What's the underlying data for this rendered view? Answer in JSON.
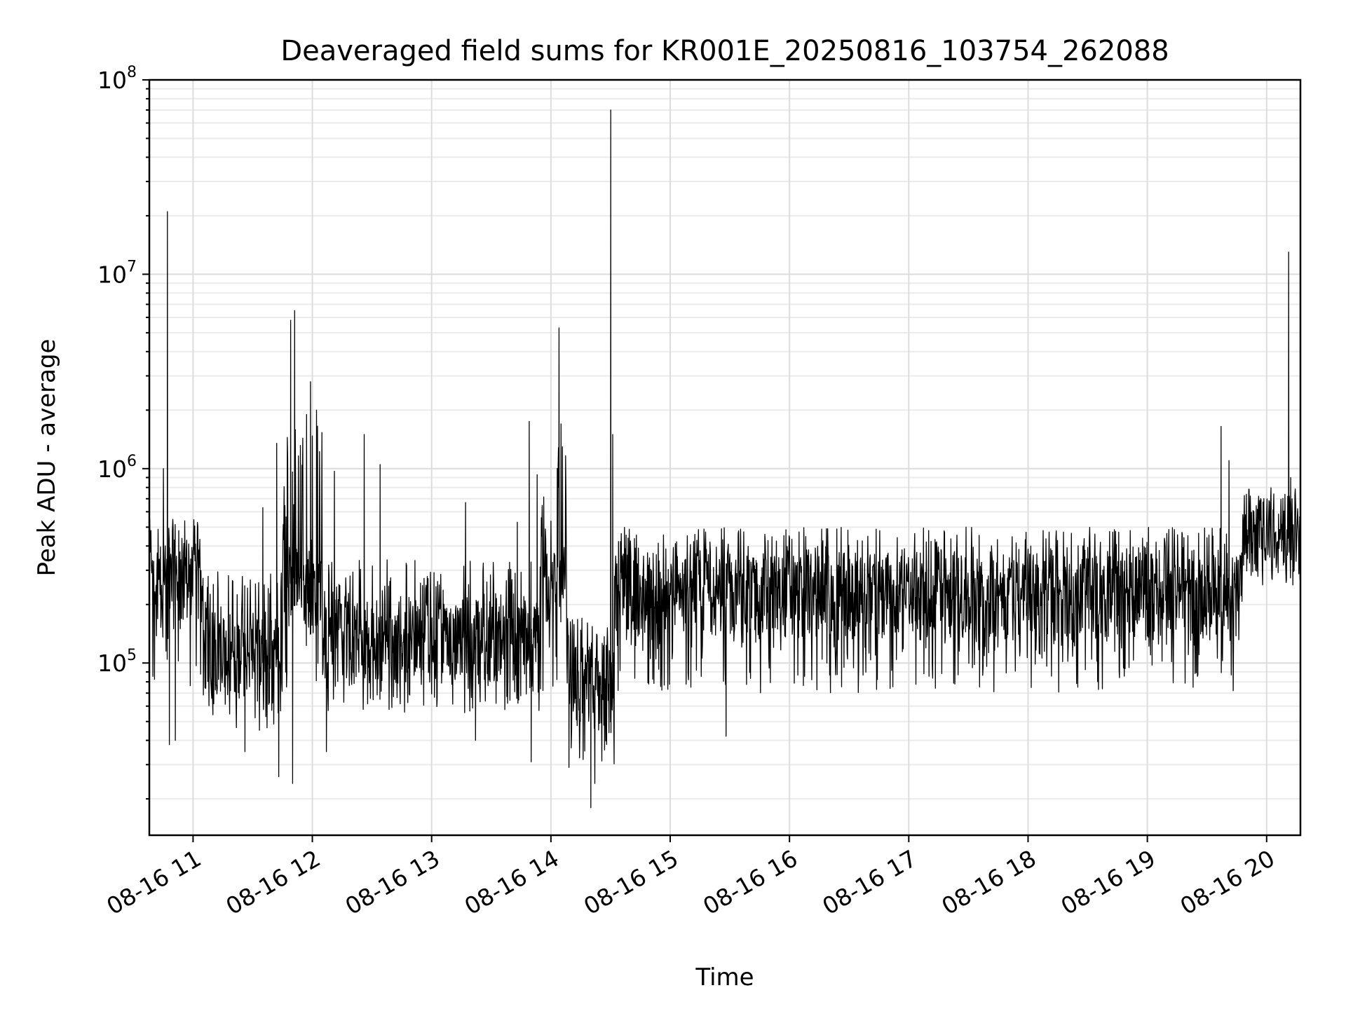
{
  "chart_data": {
    "type": "line",
    "title": "Deaveraged field sums for KR001E_20250816_103754_262088",
    "xlabel": "Time",
    "ylabel": "Peak ADU - average",
    "yscale": "log",
    "grid": true,
    "x_range": [
      "2025-08-16 10:38",
      "2025-08-16 20:17"
    ],
    "ylim": [
      13000,
      100000000
    ],
    "x_ticks": [
      "08-16 11",
      "08-16 12",
      "08-16 13",
      "08-16 14",
      "08-16 15",
      "08-16 16",
      "08-16 17",
      "08-16 18",
      "08-16 19",
      "08-16 20"
    ],
    "y_ticks": [
      {
        "base": "10",
        "exp": "5",
        "value": 100000
      },
      {
        "base": "10",
        "exp": "6",
        "value": 1000000
      },
      {
        "base": "10",
        "exp": "7",
        "value": 10000000
      },
      {
        "base": "10",
        "exp": "8",
        "value": 100000000
      }
    ],
    "series_color": "#000000",
    "segments": [
      {
        "start": "2025-08-16 10:38",
        "end": "2025-08-16 11:05",
        "baseline": 250000,
        "low": 70000,
        "high": 550000
      },
      {
        "start": "2025-08-16 11:05",
        "end": "2025-08-16 11:45",
        "baseline": 110000,
        "low": 45000,
        "high": 300000
      },
      {
        "start": "2025-08-16 11:45",
        "end": "2025-08-16 12:05",
        "baseline": 250000,
        "low": 60000,
        "high": 1800000
      },
      {
        "start": "2025-08-16 12:05",
        "end": "2025-08-16 13:55",
        "baseline": 130000,
        "low": 55000,
        "high": 350000
      },
      {
        "start": "2025-08-16 13:55",
        "end": "2025-08-16 14:08",
        "baseline": 250000,
        "low": 60000,
        "high": 1300000
      },
      {
        "start": "2025-08-16 14:08",
        "end": "2025-08-16 14:32",
        "baseline": 75000,
        "low": 30000,
        "high": 170000
      },
      {
        "start": "2025-08-16 14:32",
        "end": "2025-08-16 19:48",
        "baseline": 220000,
        "low": 70000,
        "high": 500000
      },
      {
        "start": "2025-08-16 19:48",
        "end": "2025-08-16 20:17",
        "baseline": 450000,
        "low": 250000,
        "high": 800000
      }
    ],
    "spikes": [
      {
        "t": "2025-08-16 10:47",
        "value": 21000000
      },
      {
        "t": "2025-08-16 10:45",
        "value": 1000000
      },
      {
        "t": "2025-08-16 10:48",
        "value": 38000
      },
      {
        "t": "2025-08-16 10:51",
        "value": 40000
      },
      {
        "t": "2025-08-16 11:26",
        "value": 35000
      },
      {
        "t": "2025-08-16 11:35",
        "value": 630000
      },
      {
        "t": "2025-08-16 11:42",
        "value": 1350000
      },
      {
        "t": "2025-08-16 11:43",
        "value": 26000
      },
      {
        "t": "2025-08-16 11:49",
        "value": 5800000
      },
      {
        "t": "2025-08-16 11:51",
        "value": 6500000
      },
      {
        "t": "2025-08-16 11:50",
        "value": 24000
      },
      {
        "t": "2025-08-16 11:57",
        "value": 1900000
      },
      {
        "t": "2025-08-16 11:59",
        "value": 2800000
      },
      {
        "t": "2025-08-16 12:02",
        "value": 2000000
      },
      {
        "t": "2025-08-16 12:07",
        "value": 35000
      },
      {
        "t": "2025-08-16 12:11",
        "value": 970000
      },
      {
        "t": "2025-08-16 12:26",
        "value": 1500000
      },
      {
        "t": "2025-08-16 12:34",
        "value": 1050000
      },
      {
        "t": "2025-08-16 13:17",
        "value": 670000
      },
      {
        "t": "2025-08-16 13:22",
        "value": 40000
      },
      {
        "t": "2025-08-16 13:43",
        "value": 530000
      },
      {
        "t": "2025-08-16 13:49",
        "value": 1750000
      },
      {
        "t": "2025-08-16 13:50",
        "value": 31000
      },
      {
        "t": "2025-08-16 13:53",
        "value": 930000
      },
      {
        "t": "2025-08-16 14:04",
        "value": 5300000
      },
      {
        "t": "2025-08-16 14:05",
        "value": 1700000
      },
      {
        "t": "2025-08-16 14:09",
        "value": 29000
      },
      {
        "t": "2025-08-16 14:20",
        "value": 18000
      },
      {
        "t": "2025-08-16 14:22",
        "value": 24000
      },
      {
        "t": "2025-08-16 14:30",
        "value": 70000000
      },
      {
        "t": "2025-08-16 14:31",
        "value": 1500000
      },
      {
        "t": "2025-08-16 15:28",
        "value": 42000
      },
      {
        "t": "2025-08-16 19:37",
        "value": 1650000
      },
      {
        "t": "2025-08-16 19:41",
        "value": 1100000
      },
      {
        "t": "2025-08-16 20:11",
        "value": 13000000
      },
      {
        "t": "2025-08-16 20:12",
        "value": 900000
      }
    ]
  }
}
